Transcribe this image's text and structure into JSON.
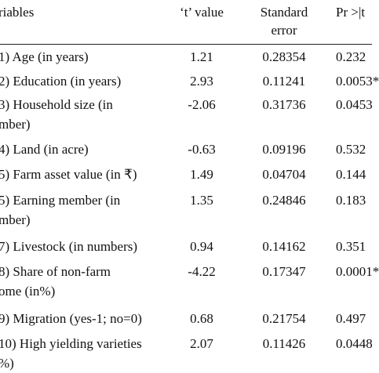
{
  "header": {
    "columns": [
      [
        "riables"
      ],
      [
        "‘t’ value"
      ],
      [
        "Standard",
        "error"
      ],
      [
        "Pr >|t"
      ]
    ]
  },
  "table": {
    "rows": [
      {
        "variable": [
          "1) Age (in years)"
        ],
        "t": "1.21",
        "se": "0.28354",
        "p": "0.232"
      },
      {
        "variable": [
          "2) Education (in years)"
        ],
        "t": "2.93",
        "se": "0.11241",
        "p": "0.0053*"
      },
      {
        "variable": [
          "3) Household size (in",
          "mber)"
        ],
        "t": "-2.06",
        "se": "0.31736",
        "p": "0.0453"
      },
      {
        "variable": [
          "4) Land (in acre)"
        ],
        "t": "-0.63",
        "se": "0.09196",
        "p": "0.532"
      },
      {
        "variable": [
          "5) Farm asset value (in ₹)"
        ],
        "t": "1.49",
        "se": "0.04704",
        "p": "0.144"
      },
      {
        "variable": [
          "5) Earning member (in",
          "mber)"
        ],
        "t": "1.35",
        "se": "0.24846",
        "p": "0.183"
      },
      {
        "variable": [
          "7) Livestock (in numbers)"
        ],
        "t": "0.94",
        "se": "0.14162",
        "p": "0.351"
      },
      {
        "variable": [
          "8) Share of non-farm",
          "ome (in%)"
        ],
        "t": "-4.22",
        "se": "0.17347",
        "p": "0.0001*"
      },
      {
        "variable": [
          "9) Migration (yes-1; no=0)"
        ],
        "t": "0.68",
        "se": "0.21754",
        "p": "0.497"
      },
      {
        "variable": [
          "10) High yielding varieties",
          "%)"
        ],
        "t": "2.07",
        "se": "0.11426",
        "p": "0.0448"
      }
    ]
  }
}
